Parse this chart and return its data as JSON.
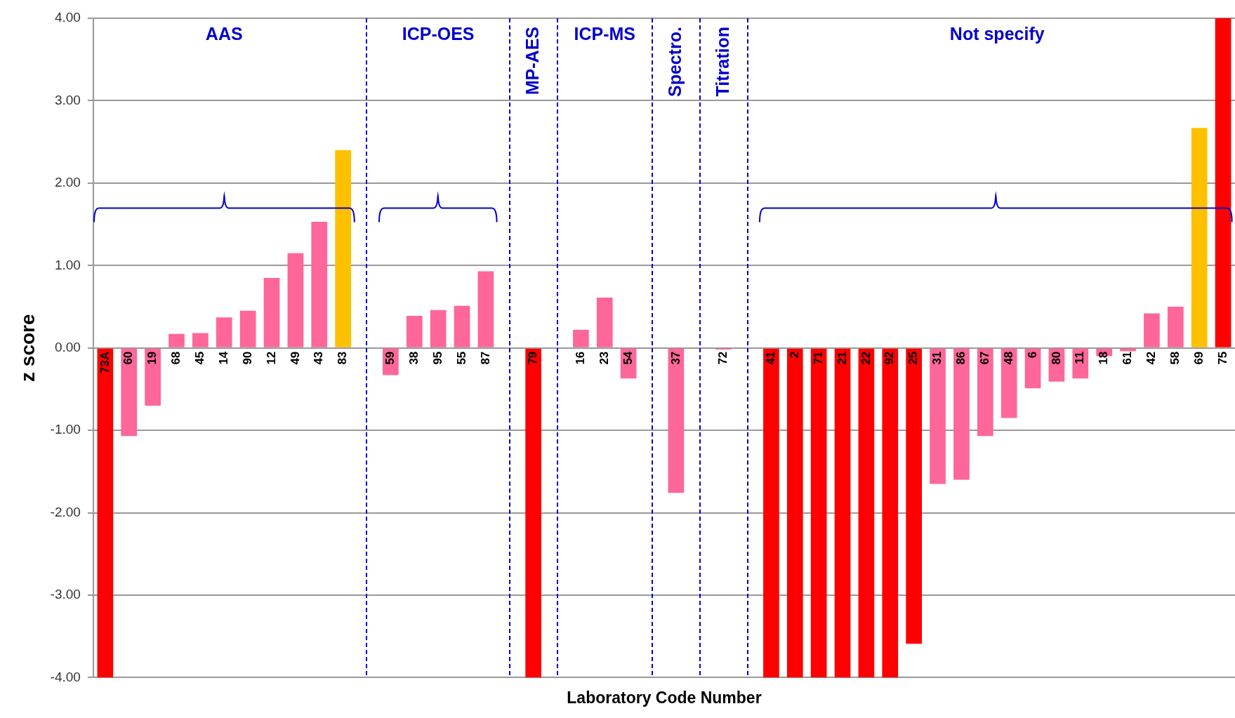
{
  "chart_data": {
    "type": "bar",
    "xlabel": "Laboratory Code Number",
    "ylabel": "z score",
    "categories": [
      "73A",
      "60",
      "19",
      "68",
      "45",
      "14",
      "90",
      "12",
      "49",
      "43",
      "83",
      null,
      "59",
      "38",
      "95",
      "55",
      "87",
      null,
      "79",
      null,
      "16",
      "23",
      "54",
      null,
      "37",
      null,
      "72",
      null,
      "41",
      "2",
      "71",
      "21",
      "22",
      "92",
      "25",
      "31",
      "86",
      "67",
      "48",
      "6",
      "80",
      "11",
      "18",
      "61",
      "42",
      "58",
      "69",
      "75"
    ],
    "values": [
      -4,
      -1.07,
      -0.7,
      0.17,
      0.18,
      0.37,
      0.45,
      0.85,
      1.15,
      1.53,
      2.4,
      null,
      -0.33,
      0.39,
      0.46,
      0.51,
      0.93,
      null,
      -4,
      null,
      0.22,
      0.61,
      -0.37,
      null,
      -1.76,
      null,
      -0.02,
      null,
      -4,
      -4,
      -4,
      -4,
      -4,
      -4,
      -3.59,
      -1.65,
      -1.6,
      -1.07,
      -0.85,
      -0.49,
      -0.41,
      -0.37,
      -0.1,
      -0.04,
      0.42,
      0.5,
      2.67,
      4.0
    ],
    "colors": [
      "#ff0000",
      "#ff6699",
      "#ff6699",
      "#ff6699",
      "#ff6699",
      "#ff6699",
      "#ff6699",
      "#ff6699",
      "#ff6699",
      "#ff6699",
      "#ffc000",
      null,
      "#ff6699",
      "#ff6699",
      "#ff6699",
      "#ff6699",
      "#ff6699",
      null,
      "#ff0000",
      null,
      "#ff6699",
      "#ff6699",
      "#ff6699",
      null,
      "#ff6699",
      null,
      "#ff6699",
      null,
      "#ff0000",
      "#ff0000",
      "#ff0000",
      "#ff0000",
      "#ff0000",
      "#ff0000",
      "#ff0000",
      "#ff6699",
      "#ff6699",
      "#ff6699",
      "#ff6699",
      "#ff6699",
      "#ff6699",
      "#ff6699",
      "#ff6699",
      "#ff6699",
      "#ff6699",
      "#ff6699",
      "#ffc000",
      "#ff0000"
    ],
    "ylim": [
      -4,
      4
    ],
    "yticks": [
      {
        "value": -4,
        "label": "-4.00"
      },
      {
        "value": -3,
        "label": "-3.00"
      },
      {
        "value": -2,
        "label": "-2.00"
      },
      {
        "value": -1,
        "label": "-1.00"
      },
      {
        "value": 0,
        "label": "0.00"
      },
      {
        "value": 1,
        "label": "1.00"
      },
      {
        "value": 2,
        "label": "2.00"
      },
      {
        "value": 3,
        "label": "3.00"
      },
      {
        "value": 4,
        "label": "4.00"
      }
    ],
    "grid": "y",
    "legend": false,
    "annotations": [
      "AAS",
      "ICP-OES",
      "MP-AES",
      "ICP-MS",
      "Spectro.",
      "Titration",
      "Not specify"
    ]
  }
}
